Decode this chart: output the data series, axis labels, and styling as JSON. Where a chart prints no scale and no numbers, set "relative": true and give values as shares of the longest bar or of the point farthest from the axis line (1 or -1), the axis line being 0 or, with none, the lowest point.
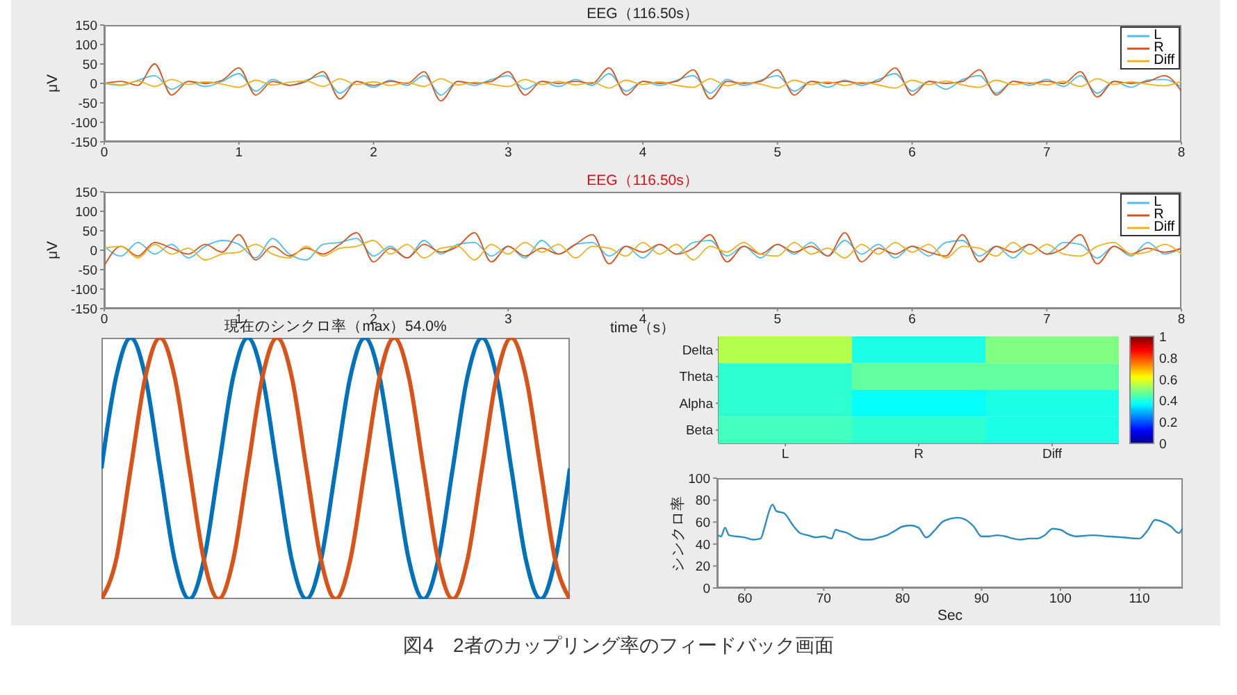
{
  "chart_data": [
    {
      "type": "line",
      "title": "EEG（116.50s）",
      "ylabel": "μV",
      "xlim": [
        0,
        8
      ],
      "xticks": [
        0,
        1,
        2,
        3,
        4,
        5,
        6,
        7,
        8
      ],
      "ylim": [
        -150,
        150
      ],
      "yticks": [
        -150,
        -100,
        -50,
        0,
        50,
        100,
        150
      ],
      "legend": "top right",
      "marker": "none",
      "x": [
        0,
        0.125,
        0.25,
        0.375,
        0.5,
        0.625,
        0.75,
        0.875,
        1,
        1.125,
        1.25,
        1.375,
        1.5,
        1.625,
        1.75,
        1.875,
        2,
        2.125,
        2.25,
        2.375,
        2.5,
        2.625,
        2.75,
        2.875,
        3,
        3.125,
        3.25,
        3.375,
        3.5,
        3.625,
        3.75,
        3.875,
        4,
        4.125,
        4.25,
        4.375,
        4.5,
        4.625,
        4.75,
        4.875,
        5,
        5.125,
        5.25,
        5.375,
        5.5,
        5.625,
        5.75,
        5.875,
        6,
        6.125,
        6.25,
        6.375,
        6.5,
        6.625,
        6.75,
        6.875,
        7,
        7.125,
        7.25,
        7.375,
        7.5,
        7.625,
        7.75,
        7.875,
        8
      ],
      "series": [
        {
          "name": "L",
          "color": "#4dbeee",
          "values": [
            0,
            -5,
            8,
            20,
            -15,
            5,
            -8,
            5,
            25,
            -20,
            10,
            -5,
            8,
            20,
            -25,
            5,
            -10,
            8,
            -5,
            20,
            -30,
            5,
            -5,
            10,
            20,
            -15,
            5,
            -8,
            10,
            -5,
            25,
            -20,
            5,
            -5,
            8,
            20,
            -25,
            10,
            -5,
            8,
            20,
            -20,
            5,
            -10,
            8,
            -5,
            10,
            25,
            -20,
            5,
            -15,
            10,
            20,
            -25,
            5,
            -5,
            10,
            -8,
            20,
            -25,
            5,
            -10,
            8,
            10,
            -10
          ]
        },
        {
          "name": "R",
          "color": "#d95319",
          "values": [
            0,
            5,
            -5,
            50,
            -30,
            5,
            0,
            8,
            40,
            -30,
            5,
            -5,
            5,
            30,
            -40,
            5,
            -5,
            5,
            0,
            30,
            -45,
            5,
            0,
            5,
            30,
            -30,
            5,
            0,
            5,
            0,
            40,
            -30,
            5,
            0,
            5,
            35,
            -40,
            5,
            0,
            5,
            35,
            -30,
            5,
            0,
            5,
            0,
            5,
            40,
            -30,
            5,
            0,
            5,
            35,
            -30,
            5,
            0,
            5,
            0,
            30,
            -35,
            5,
            0,
            5,
            20,
            -20
          ]
        },
        {
          "name": "Diff",
          "color": "#edb120",
          "values": [
            2,
            -4,
            6,
            -8,
            10,
            -3,
            4,
            -2,
            -10,
            8,
            -4,
            3,
            6,
            -8,
            12,
            -3,
            4,
            -5,
            2,
            -8,
            12,
            -4,
            3,
            -2,
            -8,
            10,
            -3,
            5,
            -4,
            3,
            -12,
            8,
            -3,
            4,
            -5,
            -10,
            12,
            -6,
            3,
            -2,
            -12,
            8,
            -3,
            4,
            -5,
            3,
            -4,
            -12,
            8,
            -3,
            6,
            -4,
            -10,
            8,
            -3,
            2,
            -4,
            5,
            -8,
            12,
            -3,
            4,
            -2,
            -6,
            5
          ]
        }
      ]
    },
    {
      "type": "line",
      "title": "EEG（116.50s）",
      "ylabel": "μV",
      "xlabel": "time（s）",
      "xlim": [
        0,
        8
      ],
      "xticks": [
        0,
        1,
        2,
        3,
        4,
        5,
        6,
        7,
        8
      ],
      "ylim": [
        -150,
        150
      ],
      "yticks": [
        -150,
        -100,
        -50,
        0,
        50,
        100,
        150
      ],
      "legend": "top right",
      "marker": "none",
      "x": [
        0,
        0.125,
        0.25,
        0.375,
        0.5,
        0.625,
        0.75,
        0.875,
        1,
        1.125,
        1.25,
        1.375,
        1.5,
        1.625,
        1.75,
        1.875,
        2,
        2.125,
        2.25,
        2.375,
        2.5,
        2.625,
        2.75,
        2.875,
        3,
        3.125,
        3.25,
        3.375,
        3.5,
        3.625,
        3.75,
        3.875,
        4,
        4.125,
        4.25,
        4.375,
        4.5,
        4.625,
        4.75,
        4.875,
        5,
        5.125,
        5.25,
        5.375,
        5.5,
        5.625,
        5.75,
        5.875,
        6,
        6.125,
        6.25,
        6.375,
        6.5,
        6.625,
        6.75,
        6.875,
        7,
        7.125,
        7.25,
        7.375,
        7.5,
        7.625,
        7.75,
        7.875,
        8
      ],
      "series": [
        {
          "name": "L",
          "color": "#4dbeee",
          "values": [
            10,
            -15,
            20,
            -10,
            15,
            -20,
            10,
            25,
            15,
            -20,
            30,
            -10,
            -25,
            15,
            20,
            30,
            -15,
            10,
            -20,
            25,
            -10,
            15,
            20,
            -15,
            10,
            -20,
            25,
            -10,
            15,
            20,
            -15,
            10,
            -20,
            15,
            -10,
            20,
            25,
            -15,
            10,
            -20,
            15,
            -10,
            20,
            -15,
            25,
            -10,
            15,
            -20,
            10,
            -15,
            20,
            25,
            -15,
            10,
            -20,
            15,
            -10,
            20,
            15,
            -20,
            10,
            -15,
            20,
            -10,
            5
          ]
        },
        {
          "name": "R",
          "color": "#d95319",
          "values": [
            -40,
            10,
            -15,
            20,
            5,
            -10,
            15,
            -5,
            40,
            -25,
            10,
            -15,
            5,
            -10,
            15,
            45,
            -30,
            5,
            -20,
            15,
            -5,
            10,
            45,
            -30,
            10,
            -15,
            5,
            -10,
            15,
            40,
            -35,
            10,
            -5,
            15,
            -10,
            5,
            40,
            -30,
            10,
            -10,
            15,
            -5,
            10,
            -15,
            45,
            -30,
            5,
            -10,
            10,
            -5,
            -15,
            40,
            -30,
            10,
            -5,
            15,
            -10,
            5,
            40,
            -35,
            10,
            -10,
            5,
            -5,
            5
          ]
        },
        {
          "name": "Diff",
          "color": "#edb120",
          "values": [
            5,
            10,
            -20,
            15,
            -10,
            5,
            -25,
            -10,
            -5,
            15,
            -10,
            -20,
            10,
            -15,
            5,
            10,
            25,
            -10,
            15,
            -20,
            5,
            10,
            -25,
            15,
            -10,
            20,
            -5,
            15,
            -20,
            10,
            5,
            -15,
            20,
            -10,
            15,
            -25,
            10,
            -5,
            20,
            -10,
            -15,
            20,
            -10,
            5,
            -20,
            15,
            -10,
            20,
            -5,
            15,
            -20,
            10,
            5,
            -15,
            20,
            -10,
            15,
            -10,
            -15,
            10,
            20,
            -10,
            -5,
            15,
            -10
          ]
        }
      ]
    },
    {
      "type": "line",
      "title": "現在のシンクロ率（max）54.0%",
      "relative": true,
      "marker": "none",
      "categories": [
        null,
        null,
        null,
        null,
        null,
        null,
        null,
        null,
        null,
        null,
        null,
        null,
        null,
        null,
        null,
        null,
        null,
        null,
        null,
        null,
        null,
        null,
        null,
        null,
        null,
        null,
        null,
        null,
        null,
        null,
        null,
        null,
        null
      ],
      "series": [
        {
          "color": "#0072bd",
          "values": [
            0.5,
            0.85,
            1,
            0.85,
            0.5,
            0.15,
            0,
            0.15,
            0.5,
            0.85,
            1,
            0.85,
            0.5,
            0.15,
            0,
            0.15,
            0.5,
            0.85,
            1,
            0.85,
            0.5,
            0.15,
            0,
            0.15,
            0.5,
            0.85,
            1,
            0.85,
            0.5,
            0.15,
            0,
            0.15,
            0.5
          ]
        },
        {
          "color": "#d95319",
          "values": [
            0,
            0.15,
            0.5,
            0.85,
            1,
            0.85,
            0.5,
            0.15,
            0,
            0.15,
            0.5,
            0.85,
            1,
            0.85,
            0.5,
            0.15,
            0,
            0.15,
            0.5,
            0.85,
            1,
            0.85,
            0.5,
            0.15,
            0,
            0.15,
            0.5,
            0.85,
            1,
            0.85,
            0.5,
            0.15,
            0
          ]
        }
      ]
    },
    {
      "type": "heatmap",
      "categories": [
        "L",
        "R",
        "Diff"
      ],
      "y_categories": [
        "Delta",
        "Theta",
        "Alpha",
        "Beta"
      ],
      "cells": [
        [
          0.55,
          0.4,
          0.5
        ],
        [
          0.42,
          0.47,
          0.47
        ],
        [
          0.42,
          0.38,
          0.4
        ],
        [
          0.44,
          0.42,
          0.4
        ]
      ],
      "clim": [
        0,
        1
      ],
      "cticks": [
        0,
        0.2,
        0.4,
        0.6,
        0.8,
        1
      ]
    },
    {
      "type": "line",
      "xlabel": "Sec",
      "ylabel": "シンクロ率",
      "xlim": [
        56.5,
        115.5
      ],
      "xticks": [
        60,
        70,
        80,
        90,
        100,
        110
      ],
      "ylim": [
        0,
        100
      ],
      "yticks": [
        0,
        20,
        40,
        60,
        80,
        100
      ],
      "marker": "none",
      "x": [
        56.5,
        57,
        57.5,
        58,
        60,
        61,
        62,
        62.5,
        63,
        63.5,
        64,
        65,
        66,
        67,
        68,
        69,
        70,
        71,
        71.5,
        72,
        73,
        74,
        75,
        76,
        77,
        78,
        79,
        80,
        81,
        82,
        83,
        84,
        85,
        86,
        87,
        88,
        89,
        90,
        91,
        92,
        93,
        94,
        95,
        96,
        97,
        98,
        99,
        100,
        101,
        102,
        104,
        106,
        108,
        110,
        111,
        112,
        113,
        114,
        115,
        115.5
      ],
      "series": [
        {
          "color": "#2a8cc0",
          "values": [
            48,
            47,
            55,
            48,
            46,
            44,
            45,
            55,
            68,
            76,
            70,
            68,
            58,
            50,
            48,
            46,
            47,
            45,
            53,
            52,
            50,
            46,
            44,
            44,
            46,
            48,
            52,
            56,
            57,
            55,
            46,
            52,
            60,
            63,
            64,
            62,
            56,
            47,
            47,
            48,
            47,
            45,
            44,
            45,
            45,
            48,
            54,
            53,
            49,
            47,
            48,
            47,
            46,
            45,
            52,
            62,
            60,
            56,
            50,
            55
          ]
        }
      ],
      "annotations": [
        "図4　2者のカップリング率のフィードバック画面"
      ]
    }
  ]
}
